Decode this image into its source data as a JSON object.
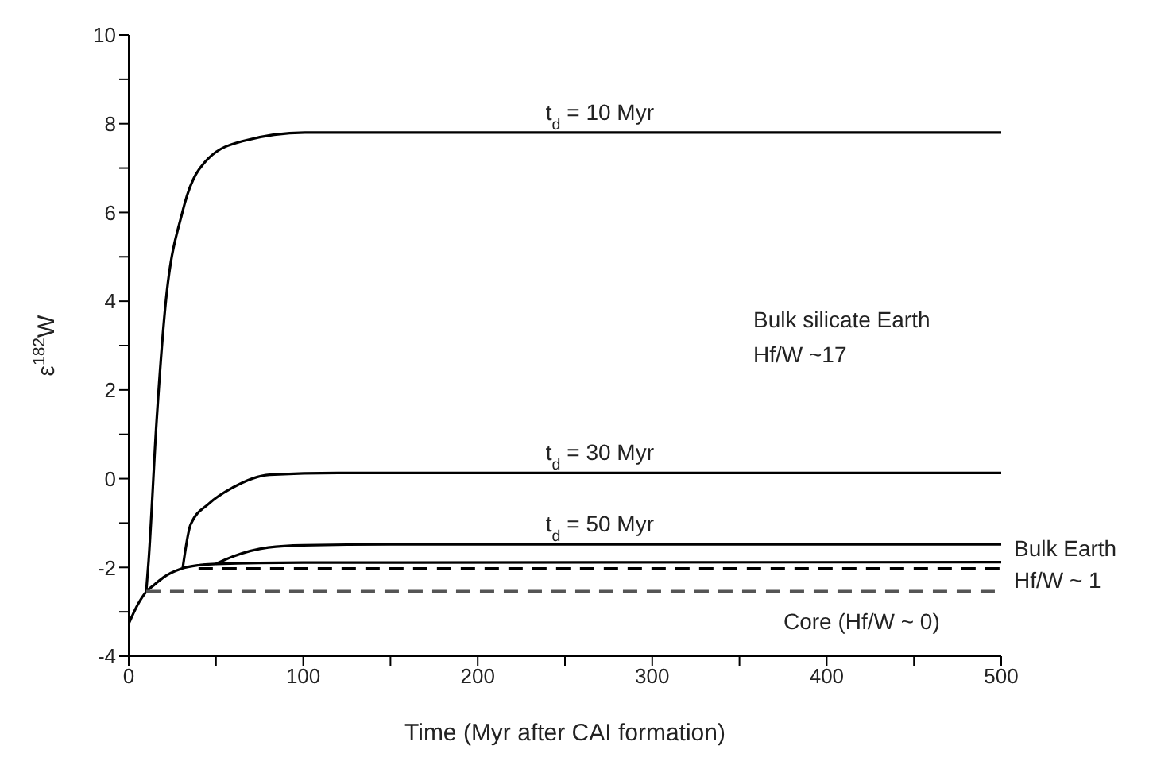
{
  "chart_data": {
    "type": "line",
    "xlabel": "Time (Myr after CAI formation)",
    "ylabel": "ε$^{182}$W",
    "xlim": [
      0,
      500
    ],
    "xticks": [
      0,
      {
        "value": 50,
        "label": null
      },
      100,
      {
        "value": 150,
        "label": null
      },
      200,
      {
        "value": 250,
        "label": null
      },
      300,
      {
        "value": 350,
        "label": null
      },
      400,
      {
        "value": 450,
        "label": null
      },
      500
    ],
    "ylim": [
      -4,
      10
    ],
    "yticks": [
      -4,
      {
        "value": -3,
        "label": null
      },
      -2,
      {
        "value": -1,
        "label": null
      },
      0,
      {
        "value": 1,
        "label": null
      },
      2,
      {
        "value": 3,
        "label": null
      },
      4,
      {
        "value": 5,
        "label": null
      },
      6,
      {
        "value": 7,
        "label": null
      },
      8,
      {
        "value": 9,
        "label": null
      },
      10
    ],
    "grid": false,
    "marker": "none",
    "series": [
      {
        "color": "#000000",
        "x": [
          10,
          11.4,
          15.9,
          20.4,
          31,
          46,
          65.6,
          101,
          500
        ],
        "values": [
          -2.55,
          -1.85,
          1.25,
          3.64,
          6.04,
          7.23,
          7.61,
          7.8,
          7.8
        ]
      },
      {
        "color": "#000000",
        "x": [
          31,
          35.5,
          46,
          59.6,
          80.7,
          120,
          500
        ],
        "values": [
          -2.0,
          -1.03,
          -0.56,
          -0.2,
          0.09,
          0.13,
          0.13
        ]
      },
      {
        "color": "#000000",
        "x": [
          50,
          60,
          80,
          100,
          150,
          500
        ],
        "values": [
          -1.92,
          -1.75,
          -1.55,
          -1.5,
          -1.48,
          -1.48
        ]
      },
      {
        "color": "#000000",
        "x": [
          0,
          5,
          10,
          15,
          20,
          30,
          40,
          50,
          100,
          500
        ],
        "values": [
          -3.27,
          -2.85,
          -2.55,
          -2.38,
          -2.22,
          -2.03,
          -1.95,
          -1.92,
          -1.89,
          -1.88
        ]
      },
      {
        "color": "#000000",
        "line_style": "dashed",
        "x": [
          40,
          500
        ],
        "values": [
          -2.03,
          -2.03
        ]
      },
      {
        "color": "#555555",
        "line_style": "dashed",
        "x": [
          10,
          500
        ],
        "values": [
          -2.54,
          -2.54
        ]
      }
    ],
    "annotations": [
      {
        "text": "t$_{d}$ = 10 Myr",
        "x": 270,
        "y": 7.8
      },
      {
        "text": "t$_{d}$ = 30 Myr",
        "x": 270,
        "y": 0.13
      },
      {
        "text": "t$_{d}$ = 50 Myr",
        "x": 270,
        "y": -1.48
      },
      "Bulk silicate Earth",
      "Hf/W ~17",
      {
        "text": "Bulk Earth",
        "x": 500,
        "y": -1.88
      },
      {
        "text": "Hf/W ~ 1",
        "x": 500,
        "y": -2.03
      },
      {
        "text": "Core (Hf/W ~ 0)",
        "x": 420,
        "y": -2.54
      }
    ]
  }
}
